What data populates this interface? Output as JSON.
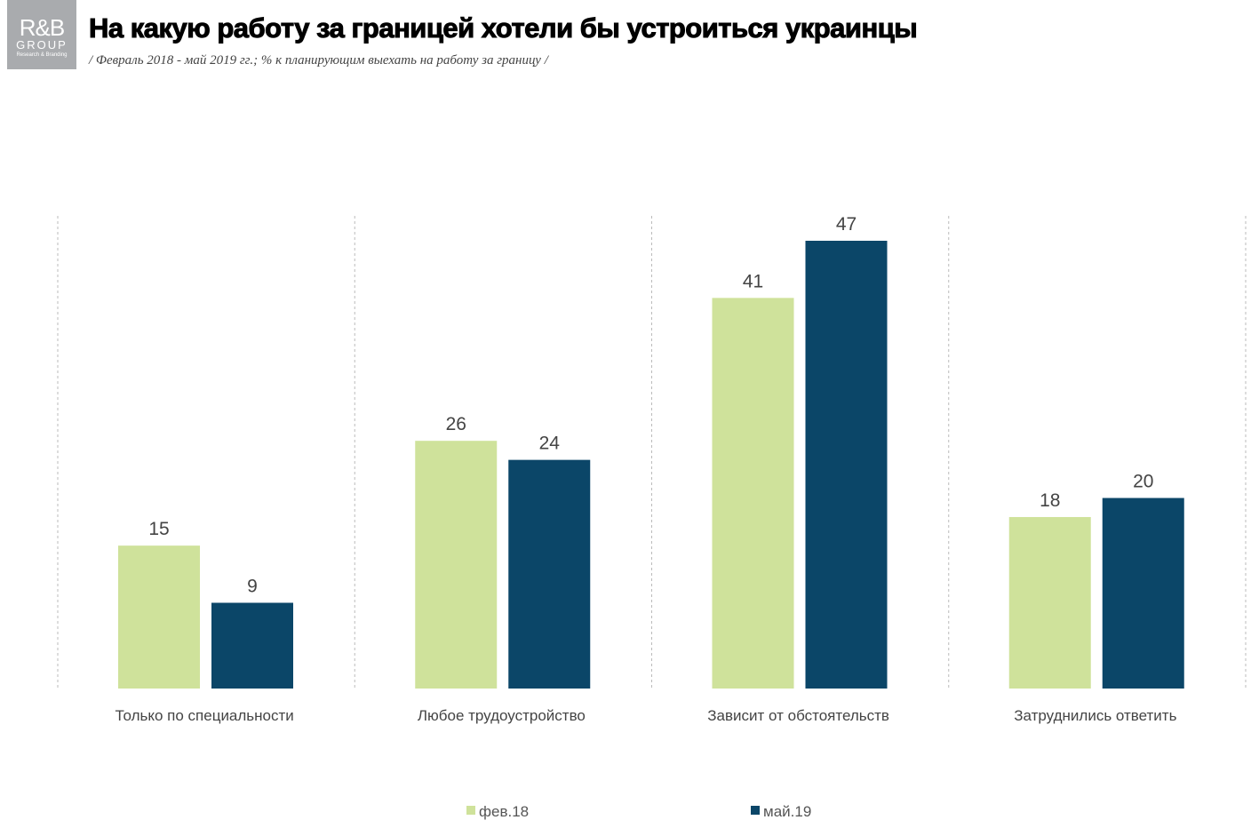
{
  "logo": {
    "line1": "R&B",
    "line2": "GROUP",
    "line3": "Research & Branding"
  },
  "title": "На какую работу за границей хотели бы устроиться украинцы",
  "subtitle": "/ Февраль 2018 - май 2019 гг.; % к планирующим выехать на работу за границу /",
  "chart_data": {
    "type": "bar",
    "categories": [
      "Только по специальности",
      "Любое трудоустройство",
      "Зависит от обстоятельств",
      "Затруднились ответить"
    ],
    "series": [
      {
        "name": "фев.18",
        "color": "#cfe29b",
        "values": [
          15,
          26,
          41,
          18
        ]
      },
      {
        "name": "май.19",
        "color": "#0b4668",
        "values": [
          9,
          24,
          47,
          20
        ]
      }
    ],
    "ylim": [
      0,
      47
    ],
    "grid": "vertical dashed separators",
    "legend": "bottom"
  }
}
